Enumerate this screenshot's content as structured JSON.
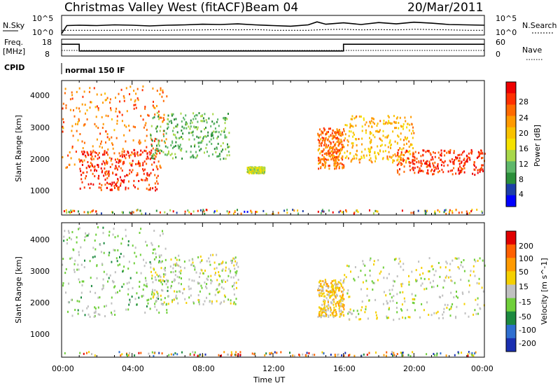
{
  "header": {
    "station": "Christmas Valley West (fitACF)",
    "beam": "Beam 04",
    "date": "20/Mar/2011"
  },
  "noise_panel": {
    "left_label": "N.Sky",
    "left_ticks": [
      "10^5",
      "10^0"
    ],
    "right_ticks": [
      "10^5",
      "10^0"
    ],
    "right_label": "N.Search"
  },
  "freq_panel": {
    "left_label_1": "Freq.",
    "left_label_2": "[MHz]",
    "left_ticks": [
      "18",
      "8"
    ],
    "right_ticks": [
      "60",
      "0"
    ],
    "right_label": "Nave"
  },
  "cpid_panel": {
    "label": "CPID",
    "mode": "normal 150 IF"
  },
  "power_panel": {
    "ylabel": "Slant Range [km]",
    "yticks": [
      "4000",
      "3000",
      "2000",
      "1000"
    ],
    "colorbar_label": "Power [dB]",
    "colorbar_ticks": [
      "28",
      "24",
      "20",
      "16",
      "12",
      "8",
      "4"
    ],
    "colors": [
      "#0000ff",
      "#1e3fa8",
      "#2b8f3a",
      "#5fb86a",
      "#a8d84a",
      "#f5e200",
      "#f8c200",
      "#ff9a00",
      "#ff6a00",
      "#ff3000",
      "#ee0000"
    ]
  },
  "velocity_panel": {
    "ylabel": "Slant Range [km]",
    "yticks": [
      "4000",
      "3000",
      "2000",
      "1000"
    ],
    "colorbar_label": "Velocity [m s^-1]",
    "colorbar_ticks": [
      "200",
      "100",
      "50",
      "15",
      "-15",
      "-50",
      "-100",
      "-200"
    ],
    "colors": [
      "#1a2fb0",
      "#2f6fd0",
      "#1d8a40",
      "#6fcf3a",
      "#c0c0c0",
      "#f5d000",
      "#ff9a00",
      "#ff6000",
      "#e00000"
    ]
  },
  "xaxis": {
    "label": "Time UT",
    "ticks": [
      "00:00",
      "04:00",
      "08:00",
      "12:00",
      "16:00",
      "20:00",
      "00:00"
    ]
  },
  "chart_data": [
    {
      "type": "line",
      "panel": "noise",
      "xlabel": "",
      "x_unit": "hours UT",
      "xlim": [
        0,
        24
      ],
      "series": [
        {
          "name": "N.Sky",
          "x": [
            0,
            0.3,
            1,
            2,
            3,
            4,
            5,
            6,
            7,
            8,
            9,
            10,
            11,
            12,
            13,
            14,
            14.5,
            15,
            16,
            17,
            18,
            19,
            20,
            21,
            22,
            23,
            24
          ],
          "y": [
            0,
            2.4,
            2.5,
            2.4,
            2.6,
            2.5,
            2.3,
            2.5,
            2.6,
            2.8,
            2.7,
            2.9,
            2.6,
            2.4,
            2.2,
            2.6,
            3.5,
            2.8,
            3.2,
            2.7,
            3.3,
            2.9,
            3.4,
            3.1,
            2.7,
            2.6,
            2.5
          ]
        },
        {
          "name": "N.Search",
          "x": [
            0,
            1,
            2,
            3,
            4,
            5,
            6,
            7,
            8,
            9,
            10,
            11,
            12,
            13,
            14,
            15,
            16,
            17,
            18,
            19,
            20,
            21,
            22,
            23,
            24
          ],
          "y": [
            1.0,
            1.0,
            1.0,
            1.0,
            1.1,
            1.0,
            1.0,
            1.1,
            1.1,
            1.2,
            1.1,
            1.2,
            1.0,
            1.0,
            1.0,
            1.2,
            1.3,
            1.1,
            1.2,
            1.1,
            1.3,
            1.2,
            1.1,
            1.0,
            1.0
          ]
        }
      ]
    },
    {
      "type": "line",
      "panel": "frequency",
      "x_unit": "hours UT",
      "xlim": [
        0,
        24
      ],
      "ylim_left": [
        8,
        18
      ],
      "ylim_right": [
        0,
        60
      ],
      "series": [
        {
          "name": "Freq.",
          "x": [
            0,
            1,
            1,
            16,
            16,
            24
          ],
          "y": [
            15,
            15,
            11,
            11,
            15,
            15
          ]
        },
        {
          "name": "Nave",
          "x": [
            0,
            24
          ],
          "y": [
            20,
            20
          ]
        }
      ]
    },
    {
      "type": "heatmap",
      "panel": "power",
      "xlabel": "Time UT",
      "ylabel": "Slant Range [km]",
      "xlim": [
        0,
        24
      ],
      "ylim": [
        180,
        4500
      ],
      "colorbar": {
        "label": "Power [dB]",
        "range": [
          0,
          32
        ]
      },
      "features": [
        {
          "t_start": 0,
          "t_end": 6,
          "r_start": 1700,
          "r_end": 4400,
          "dB": 24
        },
        {
          "t_start": 1,
          "t_end": 5.5,
          "r_start": 1000,
          "r_end": 2300,
          "dB": 28
        },
        {
          "t_start": 5,
          "t_end": 9.5,
          "r_start": 2000,
          "r_end": 3500,
          "dB": 10
        },
        {
          "t_start": 10.5,
          "t_end": 11.5,
          "r_start": 1550,
          "r_end": 1750,
          "dB": 14
        },
        {
          "t_start": 14.5,
          "t_end": 16,
          "r_start": 1700,
          "r_end": 3000,
          "dB": 24
        },
        {
          "t_start": 16,
          "t_end": 20,
          "r_start": 1900,
          "r_end": 3400,
          "dB": 20
        },
        {
          "t_start": 19,
          "t_end": 24,
          "r_start": 1500,
          "r_end": 2300,
          "dB": 28
        }
      ]
    },
    {
      "type": "heatmap",
      "panel": "velocity",
      "xlabel": "Time UT",
      "ylabel": "Slant Range [km]",
      "xlim": [
        0,
        24
      ],
      "ylim": [
        180,
        4500
      ],
      "colorbar": {
        "label": "Velocity [m s^-1]",
        "range": [
          -200,
          200
        ]
      },
      "features": [
        {
          "t_start": 0,
          "t_end": 6,
          "r_start": 1500,
          "r_end": 4400,
          "velocity": -30
        },
        {
          "t_start": 5,
          "t_end": 10,
          "r_start": 1900,
          "r_end": 3500,
          "velocity": 0
        },
        {
          "t_start": 14.5,
          "t_end": 16,
          "r_start": 1500,
          "r_end": 2700,
          "velocity": 40
        },
        {
          "t_start": 16,
          "t_end": 24,
          "r_start": 1400,
          "r_end": 3400,
          "velocity": 0
        }
      ]
    }
  ]
}
